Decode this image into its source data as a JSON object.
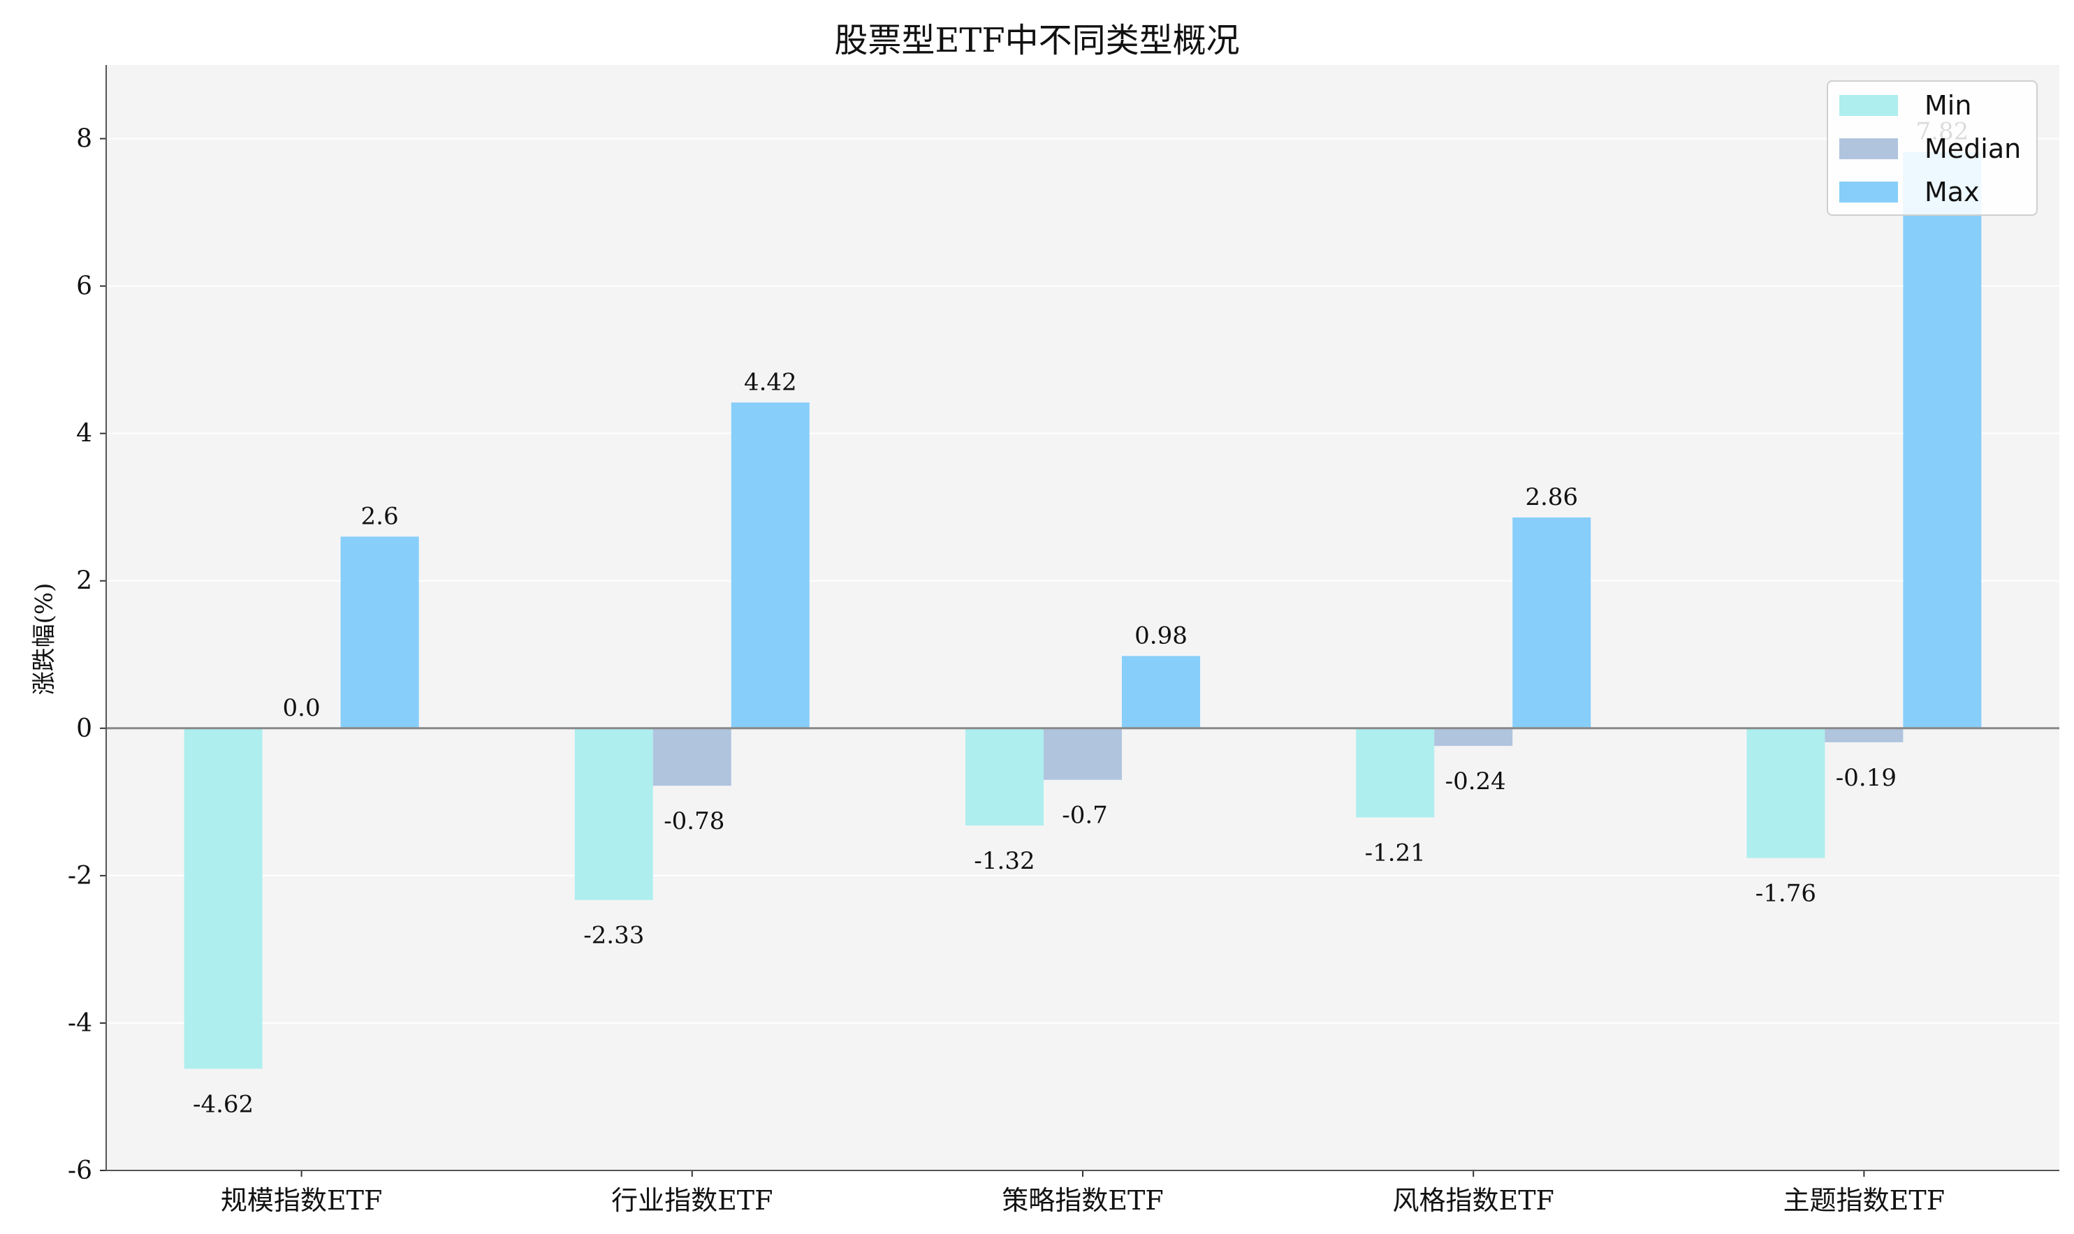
{
  "chart_data": {
    "type": "bar",
    "title": "股票型ETF中不同类型概况",
    "xlabel": "",
    "ylabel": "涨跌幅(%)",
    "categories": [
      "规模指数ETF",
      "行业指数ETF",
      "策略指数ETF",
      "风格指数ETF",
      "主题指数ETF"
    ],
    "series": [
      {
        "name": "Min",
        "values": [
          -4.62,
          -2.33,
          -1.32,
          -1.21,
          -1.76
        ],
        "labels": [
          "-4.62",
          "-2.33",
          "-1.32",
          "-1.21",
          "-1.76"
        ],
        "color": "#aeeeee"
      },
      {
        "name": "Median",
        "values": [
          0.0,
          -0.78,
          -0.7,
          -0.24,
          -0.19
        ],
        "labels": [
          "0.0",
          "-0.78",
          "-0.7",
          "-0.24",
          "-0.19"
        ],
        "color": "#b0c4de"
      },
      {
        "name": "Max",
        "values": [
          2.6,
          4.42,
          0.98,
          2.86,
          7.82
        ],
        "labels": [
          "2.6",
          "4.42",
          "0.98",
          "2.86",
          "7.82"
        ],
        "color": "#87cefa"
      }
    ],
    "ylim": [
      -6,
      9
    ],
    "yticks": [
      -6,
      -4,
      -2,
      0,
      2,
      4,
      6,
      8
    ],
    "ytick_labels": [
      "-6",
      "-4",
      "-2",
      "0",
      "2",
      "4",
      "6",
      "8"
    ],
    "grid": true,
    "legend": "top-right",
    "background": "#f4f4f5"
  }
}
